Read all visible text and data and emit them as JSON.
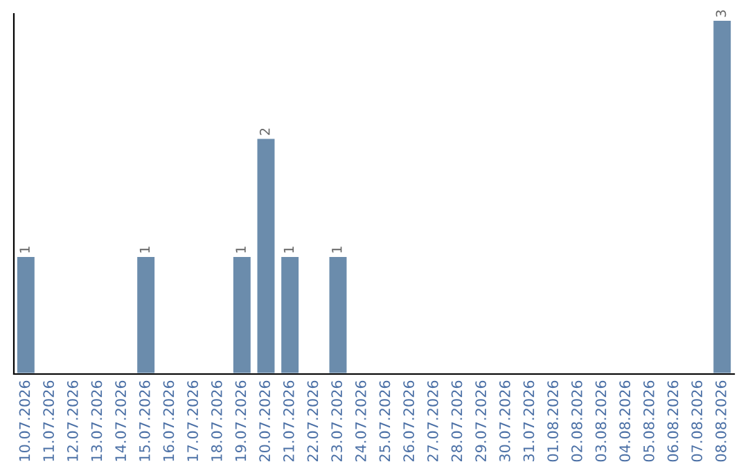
{
  "chart_data": {
    "type": "bar",
    "categories": [
      "10.07.2026",
      "11.07.2026",
      "12.07.2026",
      "13.07.2026",
      "14.07.2026",
      "15.07.2026",
      "16.07.2026",
      "17.07.2026",
      "18.07.2026",
      "19.07.2026",
      "20.07.2026",
      "21.07.2026",
      "22.07.2026",
      "23.07.2026",
      "24.07.2026",
      "25.07.2026",
      "26.07.2026",
      "27.07.2026",
      "28.07.2026",
      "29.07.2026",
      "30.07.2026",
      "31.07.2026",
      "01.08.2026",
      "02.08.2026",
      "03.08.2026",
      "04.08.2026",
      "05.08.2026",
      "06.08.2026",
      "07.08.2026",
      "08.08.2026"
    ],
    "values": [
      1,
      null,
      null,
      null,
      null,
      1,
      null,
      null,
      null,
      1,
      2,
      1,
      null,
      1,
      null,
      null,
      null,
      null,
      null,
      null,
      null,
      null,
      null,
      null,
      null,
      null,
      null,
      null,
      null,
      3
    ],
    "value_labels": [
      "1",
      null,
      null,
      null,
      null,
      "1",
      null,
      null,
      null,
      "1",
      "2",
      "1",
      null,
      "1",
      null,
      null,
      null,
      null,
      null,
      null,
      null,
      null,
      null,
      null,
      null,
      null,
      null,
      null,
      null,
      "3"
    ],
    "color": "#6b8cac",
    "ylim": [
      0,
      3.05
    ],
    "tick_labels": "x",
    "grid": false,
    "legend": false
  }
}
